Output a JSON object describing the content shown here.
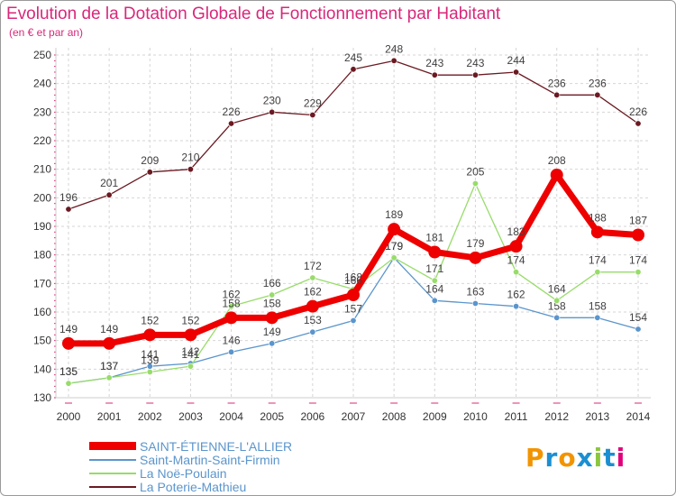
{
  "title": "Evolution de la Dotation Globale de Fonctionnement par Habitant",
  "subtitle": "(en € et par an)",
  "logo": {
    "text": "Proxiti",
    "letters": [
      "P",
      "r",
      "o",
      "x",
      "i",
      "t",
      "i"
    ],
    "colors": [
      "#f29400",
      "#1b8fd1",
      "#f29400",
      "#1b8fd1",
      "#8cc63f",
      "#1b8fd1",
      "#e2007a"
    ]
  },
  "chart_data": {
    "type": "line",
    "title": "Evolution de la Dotation Globale de Fonctionnement par Habitant",
    "ylabel": "(en € et par an)",
    "xlabel": "",
    "x": [
      "2000",
      "2001",
      "2002",
      "2003",
      "2004",
      "2005",
      "2006",
      "2007",
      "2008",
      "2009",
      "2010",
      "2011",
      "2012",
      "2013",
      "2014"
    ],
    "ylim": [
      130,
      250
    ],
    "yticks": [
      130,
      140,
      150,
      160,
      170,
      180,
      190,
      200,
      210,
      220,
      230,
      240,
      250
    ],
    "grid": true,
    "legend": "bottom-left",
    "series": [
      {
        "name": "La Poterie-Mathieu",
        "color": "#6b1a22",
        "values": [
          196,
          201,
          209,
          210,
          226,
          230,
          229,
          245,
          248,
          243,
          243,
          244,
          236,
          236,
          226
        ],
        "weight": "thin"
      },
      {
        "name": "Saint-Martin-Saint-Firmin",
        "color": "#5b95cc",
        "values": [
          135,
          137,
          141,
          142,
          146,
          149,
          153,
          157,
          179,
          164,
          163,
          162,
          158,
          158,
          154
        ],
        "weight": "thin"
      },
      {
        "name": "La Noë-Poulain",
        "color": "#98dc6a",
        "values": [
          135,
          137,
          139,
          141,
          162,
          166,
          172,
          168,
          179,
          171,
          205,
          174,
          164,
          174,
          174
        ],
        "weight": "thin"
      },
      {
        "name": "SAINT-ÉTIENNE-L'ALLIER",
        "color": "#ee0000",
        "values": [
          149,
          149,
          152,
          152,
          158,
          158,
          162,
          166,
          189,
          181,
          179,
          183,
          208,
          188,
          187
        ],
        "weight": "bold"
      }
    ]
  },
  "legend": {
    "items": [
      {
        "label": "SAINT-ÉTIENNE-L'ALLIER",
        "color": "#ee0000"
      },
      {
        "label": "Saint-Martin-Saint-Firmin",
        "color": "#5b95cc"
      },
      {
        "label": "La Noë-Poulain",
        "color": "#98dc6a"
      },
      {
        "label": "La Poterie-Mathieu",
        "color": "#6b1a22"
      }
    ]
  }
}
